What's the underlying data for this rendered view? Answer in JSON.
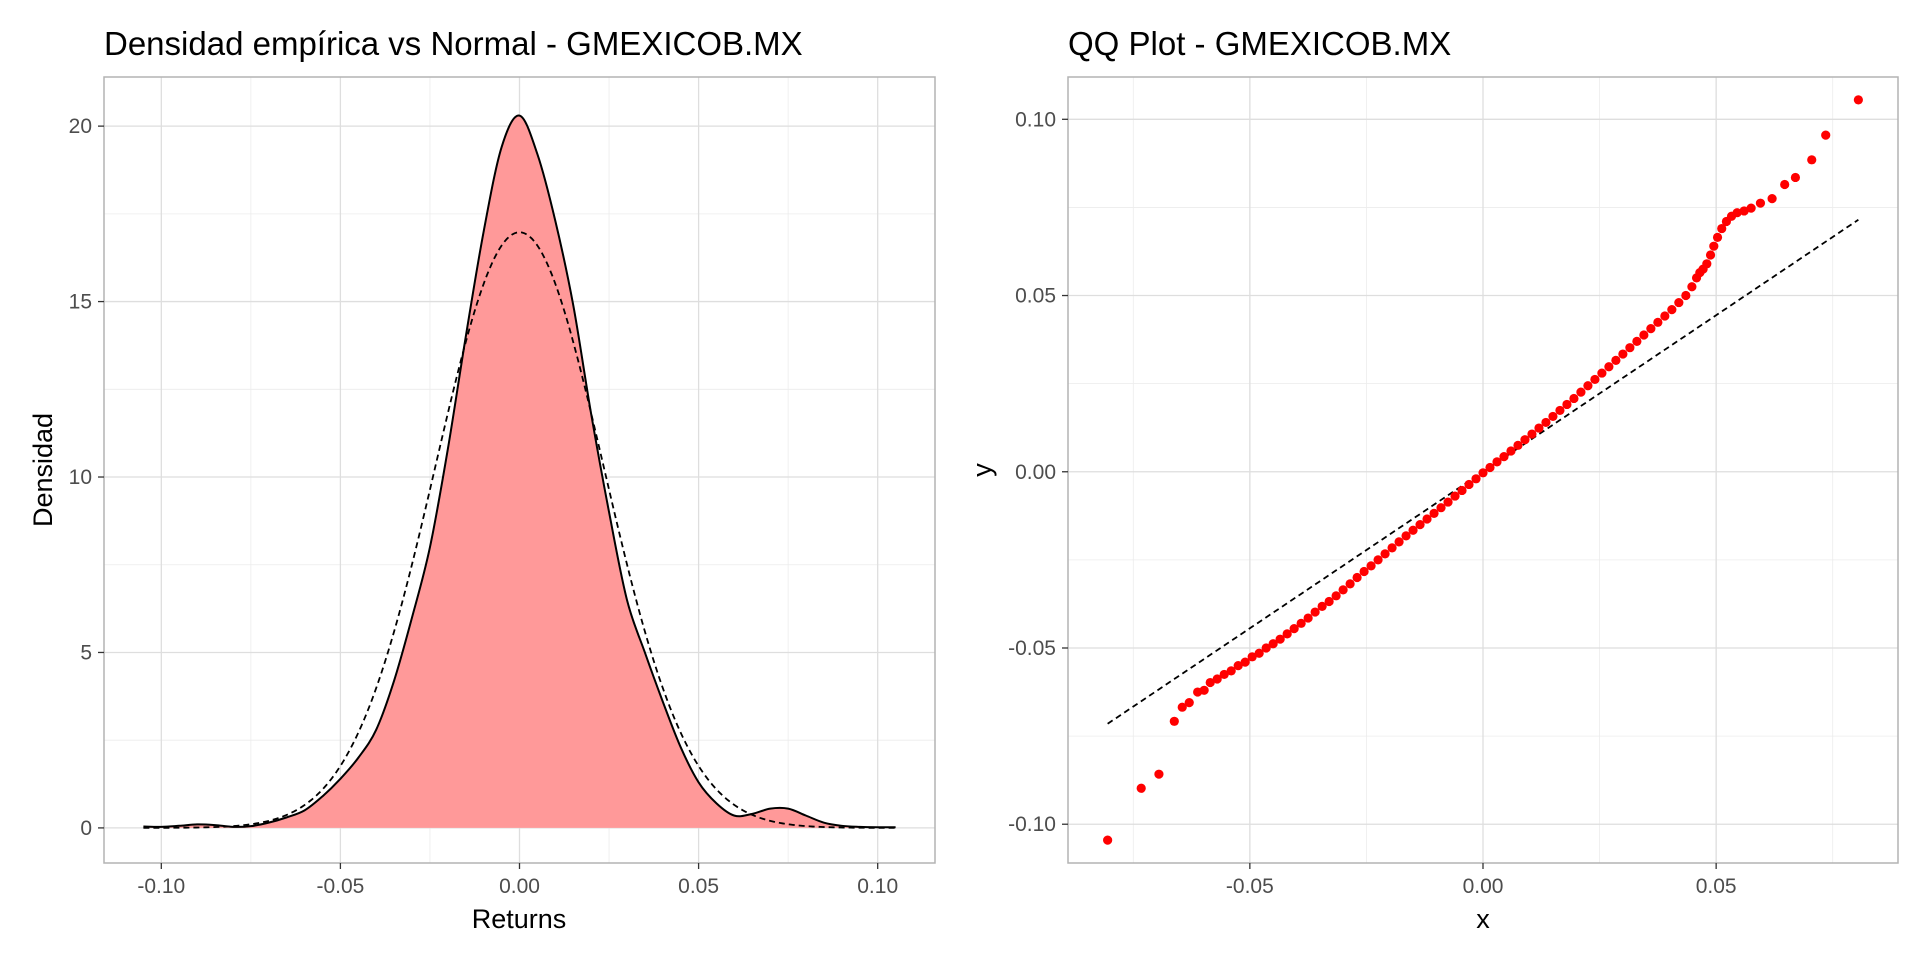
{
  "chart_data": [
    {
      "type": "area",
      "title": "Densidad empírica vs Normal - GMEXICOB.MX",
      "xlabel": "Returns",
      "ylabel": "Densidad",
      "xlim": [
        -0.116,
        0.116
      ],
      "ylim": [
        -1.0,
        21.4
      ],
      "x_ticks": [
        -0.1,
        -0.05,
        0.0,
        0.05,
        0.1
      ],
      "x_tick_labels": [
        "-0.10",
        "-0.05",
        "0.00",
        "0.05",
        "0.10"
      ],
      "y_ticks": [
        0,
        5,
        10,
        15,
        20
      ],
      "y_tick_labels": [
        "0",
        "5",
        "10",
        "15",
        "20"
      ],
      "grid": true,
      "fill_color": "#ff9999",
      "series": [
        {
          "style": "solid-filled",
          "points": [
            [
              -0.105,
              0.04
            ],
            [
              -0.1,
              0.03
            ],
            [
              -0.095,
              0.06
            ],
            [
              -0.09,
              0.1
            ],
            [
              -0.085,
              0.08
            ],
            [
              -0.08,
              0.03
            ],
            [
              -0.075,
              0.05
            ],
            [
              -0.07,
              0.15
            ],
            [
              -0.065,
              0.3
            ],
            [
              -0.06,
              0.5
            ],
            [
              -0.055,
              0.9
            ],
            [
              -0.05,
              1.4
            ],
            [
              -0.045,
              2.0
            ],
            [
              -0.04,
              2.8
            ],
            [
              -0.035,
              4.2
            ],
            [
              -0.03,
              6.0
            ],
            [
              -0.025,
              8.0
            ],
            [
              -0.02,
              10.8
            ],
            [
              -0.015,
              14.0
            ],
            [
              -0.01,
              17.0
            ],
            [
              -0.005,
              19.4
            ],
            [
              0.0,
              20.3
            ],
            [
              0.005,
              19.2
            ],
            [
              0.01,
              17.3
            ],
            [
              0.015,
              14.9
            ],
            [
              0.02,
              11.8
            ],
            [
              0.025,
              9.0
            ],
            [
              0.03,
              6.5
            ],
            [
              0.035,
              5.0
            ],
            [
              0.04,
              3.6
            ],
            [
              0.045,
              2.3
            ],
            [
              0.05,
              1.3
            ],
            [
              0.055,
              0.7
            ],
            [
              0.06,
              0.35
            ],
            [
              0.065,
              0.4
            ],
            [
              0.07,
              0.55
            ],
            [
              0.075,
              0.55
            ],
            [
              0.08,
              0.35
            ],
            [
              0.085,
              0.15
            ],
            [
              0.09,
              0.06
            ],
            [
              0.095,
              0.03
            ],
            [
              0.1,
              0.02
            ],
            [
              0.105,
              0.02
            ]
          ]
        },
        {
          "style": "dashed",
          "mean": 0.0,
          "sd": 0.0235,
          "x_range": [
            -0.105,
            0.105
          ]
        }
      ]
    },
    {
      "type": "scatter",
      "title": "QQ Plot - GMEXICOB.MX",
      "xlabel": "x",
      "ylabel": "y",
      "xlim": [
        -0.089,
        0.089
      ],
      "ylim": [
        -0.111,
        0.112
      ],
      "x_ticks": [
        -0.05,
        0.0,
        0.05
      ],
      "x_tick_labels": [
        "-0.05",
        "0.00",
        "0.05"
      ],
      "y_ticks": [
        -0.1,
        -0.05,
        0.0,
        0.05,
        0.1
      ],
      "y_tick_labels": [
        "-0.10",
        "-0.05",
        "0.00",
        "0.05",
        "0.10"
      ],
      "grid": true,
      "point_color": "#ff0000",
      "reference_line": {
        "style": "dashed",
        "points": [
          [
            -0.0805,
            -0.0715
          ],
          [
            0.0805,
            0.0715
          ]
        ]
      },
      "points": [
        [
          -0.0805,
          -0.1045
        ],
        [
          -0.0733,
          -0.0898
        ],
        [
          -0.0695,
          -0.0858
        ],
        [
          -0.0662,
          -0.0708
        ],
        [
          -0.0645,
          -0.0668
        ],
        [
          -0.063,
          -0.0655
        ],
        [
          -0.0612,
          -0.0625
        ],
        [
          -0.0598,
          -0.062
        ],
        [
          -0.0585,
          -0.0598
        ],
        [
          -0.057,
          -0.0588
        ],
        [
          -0.0555,
          -0.0575
        ],
        [
          -0.054,
          -0.0565
        ],
        [
          -0.0525,
          -0.055
        ],
        [
          -0.051,
          -0.054
        ],
        [
          -0.0495,
          -0.0525
        ],
        [
          -0.048,
          -0.0515
        ],
        [
          -0.0465,
          -0.05
        ],
        [
          -0.045,
          -0.0488
        ],
        [
          -0.0435,
          -0.0475
        ],
        [
          -0.042,
          -0.046
        ],
        [
          -0.0405,
          -0.0445
        ],
        [
          -0.039,
          -0.043
        ],
        [
          -0.0375,
          -0.0415
        ],
        [
          -0.036,
          -0.0398
        ],
        [
          -0.0345,
          -0.0382
        ],
        [
          -0.033,
          -0.0368
        ],
        [
          -0.0315,
          -0.0352
        ],
        [
          -0.03,
          -0.0335
        ],
        [
          -0.0285,
          -0.0318
        ],
        [
          -0.027,
          -0.03
        ],
        [
          -0.0255,
          -0.0283
        ],
        [
          -0.024,
          -0.0267
        ],
        [
          -0.0225,
          -0.025
        ],
        [
          -0.021,
          -0.0233
        ],
        [
          -0.0195,
          -0.0216
        ],
        [
          -0.018,
          -0.0199
        ],
        [
          -0.0165,
          -0.0182
        ],
        [
          -0.015,
          -0.0166
        ],
        [
          -0.0135,
          -0.015
        ],
        [
          -0.012,
          -0.0134
        ],
        [
          -0.0105,
          -0.0118
        ],
        [
          -0.009,
          -0.0102
        ],
        [
          -0.0075,
          -0.0086
        ],
        [
          -0.006,
          -0.0069
        ],
        [
          -0.0045,
          -0.0053
        ],
        [
          -0.003,
          -0.0036
        ],
        [
          -0.0015,
          -0.002
        ],
        [
          0.0,
          -0.0003
        ],
        [
          0.0015,
          0.0012
        ],
        [
          0.003,
          0.0028
        ],
        [
          0.0045,
          0.0043
        ],
        [
          0.006,
          0.0059
        ],
        [
          0.0075,
          0.0075
        ],
        [
          0.009,
          0.0091
        ],
        [
          0.0105,
          0.0107
        ],
        [
          0.012,
          0.0124
        ],
        [
          0.0135,
          0.014
        ],
        [
          0.015,
          0.0157
        ],
        [
          0.0165,
          0.0174
        ],
        [
          0.018,
          0.0191
        ],
        [
          0.0195,
          0.0208
        ],
        [
          0.021,
          0.0226
        ],
        [
          0.0225,
          0.0244
        ],
        [
          0.024,
          0.0262
        ],
        [
          0.0255,
          0.028
        ],
        [
          0.027,
          0.0298
        ],
        [
          0.0285,
          0.0316
        ],
        [
          0.03,
          0.0334
        ],
        [
          0.0315,
          0.0352
        ],
        [
          0.033,
          0.037
        ],
        [
          0.0345,
          0.0388
        ],
        [
          0.036,
          0.0406
        ],
        [
          0.0375,
          0.0424
        ],
        [
          0.039,
          0.0442
        ],
        [
          0.0405,
          0.046
        ],
        [
          0.042,
          0.048
        ],
        [
          0.0435,
          0.05
        ],
        [
          0.0448,
          0.0525
        ],
        [
          0.0458,
          0.055
        ],
        [
          0.0465,
          0.0565
        ],
        [
          0.0472,
          0.0575
        ],
        [
          0.048,
          0.059
        ],
        [
          0.0488,
          0.0615
        ],
        [
          0.0495,
          0.064
        ],
        [
          0.0503,
          0.0665
        ],
        [
          0.0512,
          0.069
        ],
        [
          0.0522,
          0.071
        ],
        [
          0.0533,
          0.0725
        ],
        [
          0.0545,
          0.0735
        ],
        [
          0.056,
          0.074
        ],
        [
          0.0575,
          0.0748
        ],
        [
          0.0595,
          0.0762
        ],
        [
          0.062,
          0.0775
        ],
        [
          0.0647,
          0.0815
        ],
        [
          0.067,
          0.0835
        ],
        [
          0.0705,
          0.0885
        ],
        [
          0.0735,
          0.0955
        ],
        [
          0.0805,
          0.1055
        ]
      ]
    }
  ]
}
